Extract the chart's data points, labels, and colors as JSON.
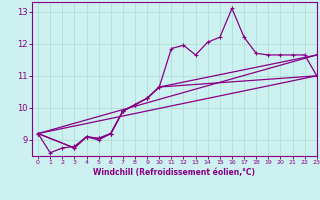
{
  "xlabel": "Windchill (Refroidissement éolien,°C)",
  "xlim": [
    -0.5,
    23
  ],
  "ylim": [
    8.5,
    13.3
  ],
  "yticks": [
    9,
    10,
    11,
    12,
    13
  ],
  "xticks": [
    0,
    1,
    2,
    3,
    4,
    5,
    6,
    7,
    8,
    9,
    10,
    11,
    12,
    13,
    14,
    15,
    16,
    17,
    18,
    19,
    20,
    21,
    22,
    23
  ],
  "bg_color": "#cdf0f0",
  "grid_color": "#aaddcc",
  "line_color": "#880088",
  "figsize": [
    3.2,
    2.0
  ],
  "dpi": 100,
  "line1_x": [
    0,
    1,
    2,
    3,
    4,
    5,
    6,
    7,
    8,
    9,
    10,
    11,
    12,
    13,
    14,
    15,
    16,
    17,
    18,
    19,
    20,
    21,
    22,
    23
  ],
  "line1_y": [
    9.2,
    8.6,
    8.75,
    8.8,
    9.1,
    9.0,
    9.2,
    9.9,
    10.1,
    10.3,
    10.65,
    11.85,
    11.95,
    11.65,
    12.05,
    12.2,
    13.1,
    12.2,
    11.7,
    11.65,
    11.65,
    11.65,
    11.65,
    11.0
  ],
  "line2_x": [
    0,
    3,
    4,
    5,
    6,
    7,
    8,
    9,
    10,
    23
  ],
  "line2_y": [
    9.2,
    8.75,
    9.1,
    9.05,
    9.2,
    9.9,
    10.1,
    10.3,
    10.65,
    11.65
  ],
  "line3_x": [
    0,
    3,
    4,
    5,
    6,
    7,
    8,
    9,
    10,
    23
  ],
  "line3_y": [
    9.2,
    8.75,
    9.1,
    9.05,
    9.2,
    9.9,
    10.1,
    10.3,
    10.65,
    11.0
  ],
  "line4_x": [
    0,
    23
  ],
  "line4_y": [
    9.2,
    11.65
  ],
  "line5_x": [
    0,
    23
  ],
  "line5_y": [
    9.2,
    11.0
  ]
}
